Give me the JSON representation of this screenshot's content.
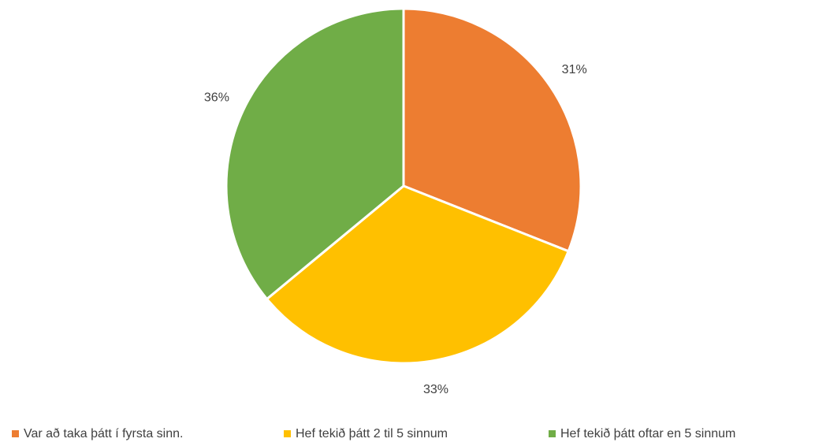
{
  "chart_data": {
    "type": "pie",
    "categories": [
      "Var að taka þátt í fyrsta sinn.",
      "Hef tekið þátt 2 til 5 sinnum",
      "Hef tekið þátt oftar en 5 sinnum"
    ],
    "values": [
      31,
      33,
      36
    ],
    "value_labels": [
      "31%",
      "33%",
      "36%"
    ],
    "colors": [
      "#ED7D31",
      "#FFC000",
      "#70AD47"
    ]
  }
}
